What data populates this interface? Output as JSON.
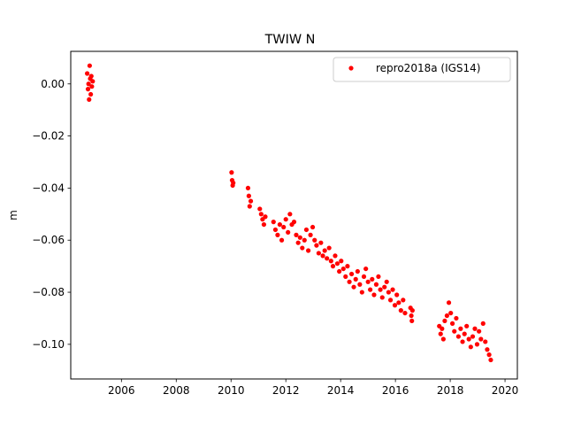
{
  "chart_data": {
    "type": "scatter",
    "title": "TWIW N",
    "xlabel": "",
    "ylabel": "m",
    "xlim": [
      2004.15,
      2020.45
    ],
    "ylim": [
      -0.1133,
      0.0125
    ],
    "x_ticks": [
      2006,
      2008,
      2010,
      2012,
      2014,
      2016,
      2018,
      2020
    ],
    "x_tick_labels": [
      "2006",
      "2008",
      "2010",
      "2012",
      "2014",
      "2016",
      "2018",
      "2020"
    ],
    "y_ticks": [
      0.0,
      -0.02,
      -0.04,
      -0.06,
      -0.08,
      -0.1
    ],
    "y_tick_labels": [
      "0.00",
      "−0.02",
      "−0.04",
      "−0.06",
      "−0.08",
      "−0.10"
    ],
    "legend_position": "top-right",
    "grid": false,
    "series": [
      {
        "name": "repro2018a (IGS14)",
        "color": "#ff0000",
        "marker": "circle",
        "points": [
          [
            2004.75,
            0.004
          ],
          [
            2004.78,
            -0.002
          ],
          [
            2004.8,
            0.0
          ],
          [
            2004.82,
            -0.006
          ],
          [
            2004.84,
            0.007
          ],
          [
            2004.86,
            0.002
          ],
          [
            2004.88,
            -0.004
          ],
          [
            2004.9,
            0.003
          ],
          [
            2004.92,
            -0.001
          ],
          [
            2004.95,
            0.001
          ],
          [
            2010.02,
            -0.034
          ],
          [
            2010.04,
            -0.037
          ],
          [
            2010.06,
            -0.039
          ],
          [
            2010.08,
            -0.038
          ],
          [
            2010.62,
            -0.04
          ],
          [
            2010.65,
            -0.043
          ],
          [
            2010.68,
            -0.047
          ],
          [
            2010.72,
            -0.045
          ],
          [
            2011.05,
            -0.048
          ],
          [
            2011.1,
            -0.05
          ],
          [
            2011.15,
            -0.052
          ],
          [
            2011.2,
            -0.054
          ],
          [
            2011.25,
            -0.051
          ],
          [
            2011.55,
            -0.053
          ],
          [
            2011.62,
            -0.056
          ],
          [
            2011.7,
            -0.058
          ],
          [
            2011.78,
            -0.054
          ],
          [
            2011.85,
            -0.06
          ],
          [
            2011.92,
            -0.055
          ],
          [
            2012.0,
            -0.052
          ],
          [
            2012.08,
            -0.057
          ],
          [
            2012.15,
            -0.05
          ],
          [
            2012.22,
            -0.054
          ],
          [
            2012.3,
            -0.053
          ],
          [
            2012.38,
            -0.058
          ],
          [
            2012.45,
            -0.061
          ],
          [
            2012.52,
            -0.059
          ],
          [
            2012.6,
            -0.063
          ],
          [
            2012.68,
            -0.06
          ],
          [
            2012.75,
            -0.056
          ],
          [
            2012.82,
            -0.064
          ],
          [
            2012.9,
            -0.058
          ],
          [
            2012.98,
            -0.055
          ],
          [
            2013.05,
            -0.06
          ],
          [
            2013.12,
            -0.062
          ],
          [
            2013.2,
            -0.065
          ],
          [
            2013.28,
            -0.061
          ],
          [
            2013.35,
            -0.066
          ],
          [
            2013.42,
            -0.064
          ],
          [
            2013.5,
            -0.067
          ],
          [
            2013.58,
            -0.063
          ],
          [
            2013.65,
            -0.068
          ],
          [
            2013.72,
            -0.07
          ],
          [
            2013.8,
            -0.066
          ],
          [
            2013.88,
            -0.069
          ],
          [
            2013.95,
            -0.072
          ],
          [
            2014.02,
            -0.068
          ],
          [
            2014.1,
            -0.071
          ],
          [
            2014.18,
            -0.074
          ],
          [
            2014.25,
            -0.07
          ],
          [
            2014.32,
            -0.076
          ],
          [
            2014.4,
            -0.073
          ],
          [
            2014.48,
            -0.078
          ],
          [
            2014.55,
            -0.075
          ],
          [
            2014.62,
            -0.072
          ],
          [
            2014.7,
            -0.077
          ],
          [
            2014.78,
            -0.08
          ],
          [
            2014.85,
            -0.074
          ],
          [
            2014.92,
            -0.071
          ],
          [
            2015.0,
            -0.076
          ],
          [
            2015.08,
            -0.079
          ],
          [
            2015.15,
            -0.075
          ],
          [
            2015.22,
            -0.081
          ],
          [
            2015.3,
            -0.077
          ],
          [
            2015.38,
            -0.074
          ],
          [
            2015.45,
            -0.079
          ],
          [
            2015.52,
            -0.082
          ],
          [
            2015.6,
            -0.078
          ],
          [
            2015.68,
            -0.076
          ],
          [
            2015.75,
            -0.08
          ],
          [
            2015.82,
            -0.083
          ],
          [
            2015.9,
            -0.079
          ],
          [
            2015.98,
            -0.085
          ],
          [
            2016.05,
            -0.081
          ],
          [
            2016.12,
            -0.084
          ],
          [
            2016.2,
            -0.087
          ],
          [
            2016.28,
            -0.083
          ],
          [
            2016.35,
            -0.088
          ],
          [
            2016.55,
            -0.086
          ],
          [
            2016.58,
            -0.089
          ],
          [
            2016.6,
            -0.091
          ],
          [
            2016.62,
            -0.087
          ],
          [
            2017.6,
            -0.093
          ],
          [
            2017.65,
            -0.096
          ],
          [
            2017.7,
            -0.094
          ],
          [
            2017.75,
            -0.098
          ],
          [
            2017.8,
            -0.091
          ],
          [
            2017.88,
            -0.089
          ],
          [
            2017.95,
            -0.084
          ],
          [
            2018.02,
            -0.088
          ],
          [
            2018.08,
            -0.092
          ],
          [
            2018.15,
            -0.095
          ],
          [
            2018.22,
            -0.09
          ],
          [
            2018.3,
            -0.097
          ],
          [
            2018.38,
            -0.094
          ],
          [
            2018.45,
            -0.099
          ],
          [
            2018.52,
            -0.096
          ],
          [
            2018.6,
            -0.093
          ],
          [
            2018.68,
            -0.098
          ],
          [
            2018.75,
            -0.101
          ],
          [
            2018.82,
            -0.097
          ],
          [
            2018.9,
            -0.094
          ],
          [
            2018.98,
            -0.1
          ],
          [
            2019.05,
            -0.095
          ],
          [
            2019.12,
            -0.098
          ],
          [
            2019.2,
            -0.092
          ],
          [
            2019.28,
            -0.099
          ],
          [
            2019.35,
            -0.102
          ],
          [
            2019.42,
            -0.104
          ],
          [
            2019.48,
            -0.106
          ]
        ]
      }
    ]
  }
}
